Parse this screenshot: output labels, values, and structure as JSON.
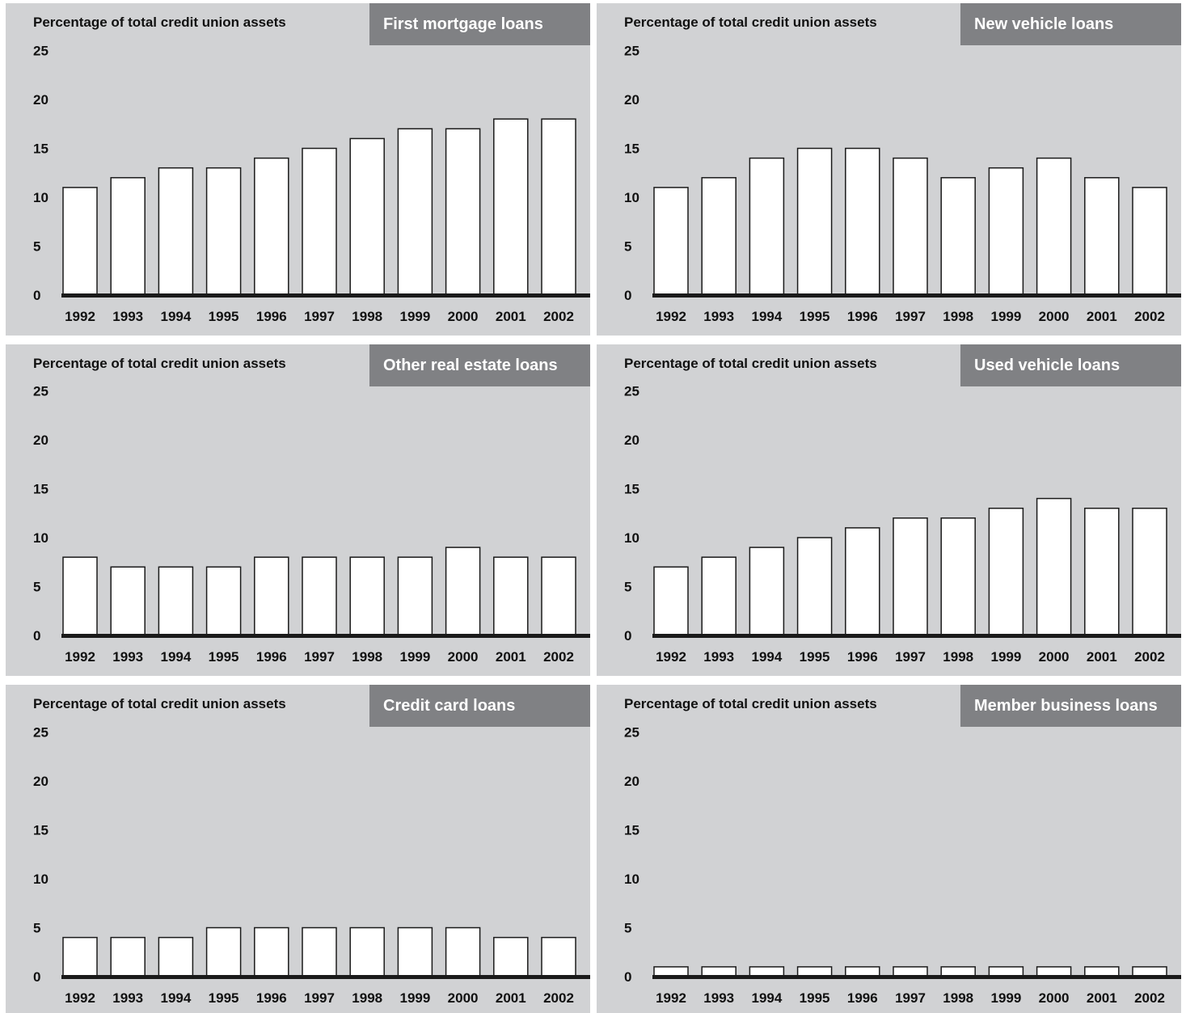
{
  "y_axis_label": "Percentage of total credit union assets",
  "chart_data": [
    {
      "type": "bar",
      "title": "First mortgage loans",
      "ylabel": "Percentage of total credit union assets",
      "ylim": [
        0,
        25
      ],
      "yticks": [
        "0",
        "5",
        "10",
        "15",
        "20",
        "25"
      ],
      "categories": [
        "1992",
        "1993",
        "1994",
        "1995",
        "1996",
        "1997",
        "1998",
        "1999",
        "2000",
        "2001",
        "2002"
      ],
      "values": [
        11,
        12,
        13,
        13,
        14,
        15,
        16,
        17,
        17,
        18,
        18
      ]
    },
    {
      "type": "bar",
      "title": "New vehicle loans",
      "ylabel": "Percentage of total credit union assets",
      "ylim": [
        0,
        25
      ],
      "yticks": [
        "0",
        "5",
        "10",
        "15",
        "20",
        "25"
      ],
      "categories": [
        "1992",
        "1993",
        "1994",
        "1995",
        "1996",
        "1997",
        "1998",
        "1999",
        "2000",
        "2001",
        "2002"
      ],
      "values": [
        11,
        12,
        14,
        15,
        15,
        14,
        12,
        13,
        14,
        12,
        11
      ]
    },
    {
      "type": "bar",
      "title": "Other real estate loans",
      "ylabel": "Percentage of total credit union assets",
      "ylim": [
        0,
        25
      ],
      "yticks": [
        "0",
        "5",
        "10",
        "15",
        "20",
        "25"
      ],
      "categories": [
        "1992",
        "1993",
        "1994",
        "1995",
        "1996",
        "1997",
        "1998",
        "1999",
        "2000",
        "2001",
        "2002"
      ],
      "values": [
        8,
        7,
        7,
        7,
        8,
        8,
        8,
        8,
        9,
        8,
        8
      ]
    },
    {
      "type": "bar",
      "title": "Used vehicle loans",
      "ylabel": "Percentage of total credit union assets",
      "ylim": [
        0,
        25
      ],
      "yticks": [
        "0",
        "5",
        "10",
        "15",
        "20",
        "25"
      ],
      "categories": [
        "1992",
        "1993",
        "1994",
        "1995",
        "1996",
        "1997",
        "1998",
        "1999",
        "2000",
        "2001",
        "2002"
      ],
      "values": [
        7,
        8,
        9,
        10,
        11,
        12,
        12,
        13,
        14,
        13,
        13
      ]
    },
    {
      "type": "bar",
      "title": "Credit card loans",
      "ylabel": "Percentage of total credit union assets",
      "ylim": [
        0,
        25
      ],
      "yticks": [
        "0",
        "5",
        "10",
        "15",
        "20",
        "25"
      ],
      "categories": [
        "1992",
        "1993",
        "1994",
        "1995",
        "1996",
        "1997",
        "1998",
        "1999",
        "2000",
        "2001",
        "2002"
      ],
      "values": [
        4,
        4,
        4,
        5,
        5,
        5,
        5,
        5,
        5,
        4,
        4
      ]
    },
    {
      "type": "bar",
      "title": "Member business loans",
      "ylabel": "Percentage of total credit union assets",
      "ylim": [
        0,
        25
      ],
      "yticks": [
        "0",
        "5",
        "10",
        "15",
        "20",
        "25"
      ],
      "categories": [
        "1992",
        "1993",
        "1994",
        "1995",
        "1996",
        "1997",
        "1998",
        "1999",
        "2000",
        "2001",
        "2002"
      ],
      "values": [
        1,
        1,
        1,
        1,
        1,
        1,
        1,
        1,
        1,
        1,
        1
      ]
    }
  ]
}
